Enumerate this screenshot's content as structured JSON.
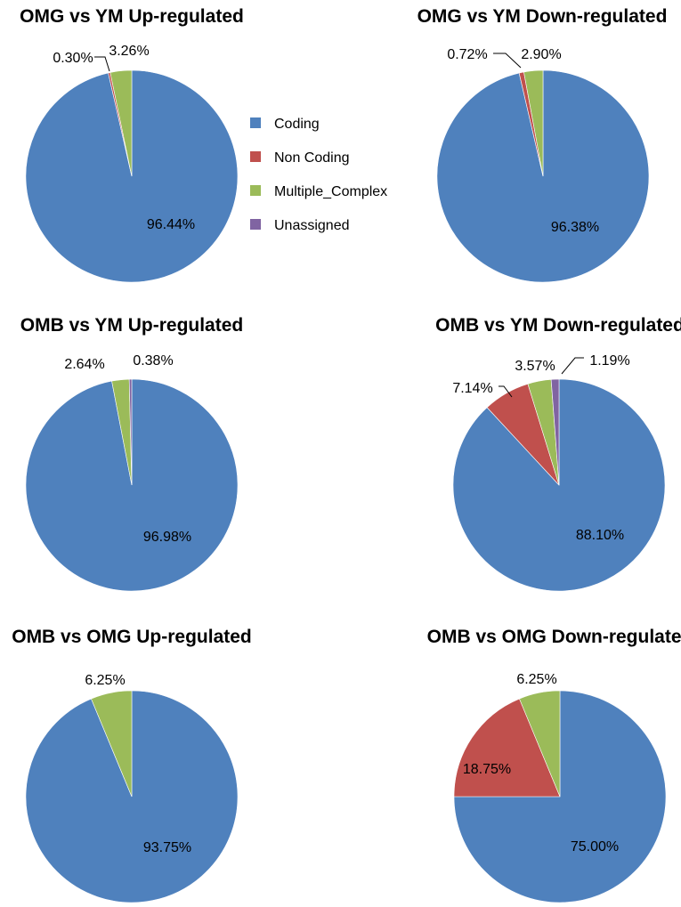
{
  "colors": {
    "Coding": "#4F81BD",
    "Non Coding": "#C0504D",
    "Multiple_Complex": "#9BBB59",
    "Unassigned": "#8064A2"
  },
  "legend": [
    "Coding",
    "Non Coding",
    "Multiple_Complex",
    "Unassigned"
  ],
  "chart_data": [
    {
      "type": "pie",
      "title": "OMG vs YM Up-regulated",
      "slices": [
        {
          "name": "Coding",
          "value": 96.44,
          "label": "96.44%"
        },
        {
          "name": "Non Coding",
          "value": 0.3,
          "label": "0.30%"
        },
        {
          "name": "Multiple_Complex",
          "value": 3.26,
          "label": "3.26%"
        }
      ]
    },
    {
      "type": "pie",
      "title": "OMG vs YM Down-regulated",
      "slices": [
        {
          "name": "Coding",
          "value": 96.38,
          "label": "96.38%"
        },
        {
          "name": "Non Coding",
          "value": 0.72,
          "label": "0.72%"
        },
        {
          "name": "Multiple_Complex",
          "value": 2.9,
          "label": "2.90%"
        }
      ]
    },
    {
      "type": "pie",
      "title": "OMB vs YM Up-regulated",
      "slices": [
        {
          "name": "Coding",
          "value": 96.98,
          "label": "96.98%"
        },
        {
          "name": "Multiple_Complex",
          "value": 2.64,
          "label": "2.64%"
        },
        {
          "name": "Unassigned",
          "value": 0.38,
          "label": "0.38%"
        }
      ]
    },
    {
      "type": "pie",
      "title": "OMB vs YM Down-regulated",
      "slices": [
        {
          "name": "Coding",
          "value": 88.1,
          "label": "88.10%"
        },
        {
          "name": "Non Coding",
          "value": 7.14,
          "label": "7.14%"
        },
        {
          "name": "Multiple_Complex",
          "value": 3.57,
          "label": "3.57%"
        },
        {
          "name": "Unassigned",
          "value": 1.19,
          "label": "1.19%"
        }
      ]
    },
    {
      "type": "pie",
      "title": "OMB vs OMG Up-regulated",
      "slices": [
        {
          "name": "Coding",
          "value": 93.75,
          "label": "93.75%"
        },
        {
          "name": "Multiple_Complex",
          "value": 6.25,
          "label": "6.25%"
        }
      ]
    },
    {
      "type": "pie",
      "title": "OMB vs OMG Down-regulated",
      "slices": [
        {
          "name": "Coding",
          "value": 75.0,
          "label": "75.00%"
        },
        {
          "name": "Non Coding",
          "value": 18.75,
          "label": "18.75%"
        },
        {
          "name": "Multiple_Complex",
          "value": 6.25,
          "label": "6.25%"
        }
      ]
    }
  ]
}
